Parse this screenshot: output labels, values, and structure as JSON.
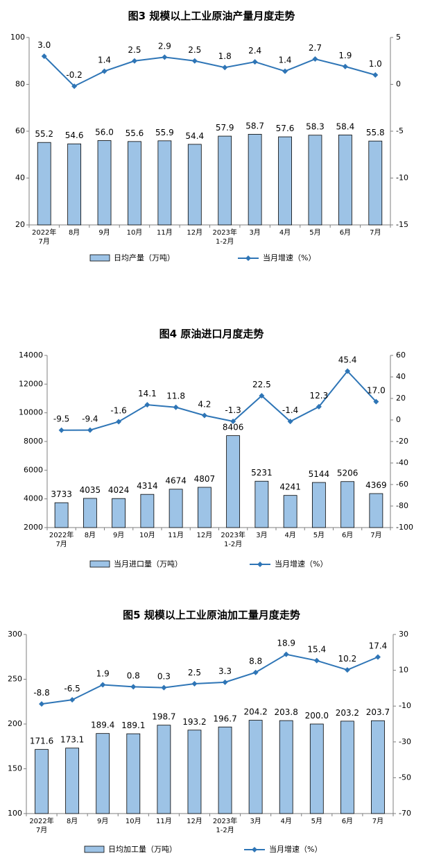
{
  "chart_data": [
    {
      "type": "bar+line",
      "title": "图3  规模以上工业原油产量月度走势",
      "categories": [
        [
          "2022年",
          "7月"
        ],
        [
          "8月"
        ],
        [
          "9月"
        ],
        [
          "10月"
        ],
        [
          "11月"
        ],
        [
          "12月"
        ],
        [
          "2023年",
          "1-2月"
        ],
        [
          "3月"
        ],
        [
          "4月"
        ],
        [
          "5月"
        ],
        [
          "6月"
        ],
        [
          "7月"
        ]
      ],
      "bars": {
        "name": "日均产量（万吨）",
        "values": [
          55.2,
          54.6,
          56.0,
          55.6,
          55.9,
          54.4,
          57.9,
          58.7,
          57.6,
          58.3,
          58.4,
          55.8
        ],
        "labels": [
          "55.2",
          "54.6",
          "56.0",
          "55.6",
          "55.9",
          "54.4",
          "57.9",
          "58.7",
          "57.6",
          "58.3",
          "58.4",
          "55.8"
        ]
      },
      "line": {
        "name": "当月增速（%）",
        "values": [
          3.0,
          -0.2,
          1.4,
          2.5,
          2.9,
          2.5,
          1.8,
          2.4,
          1.4,
          2.7,
          1.9,
          1.0
        ],
        "labels": [
          "3.0",
          "-0.2",
          "1.4",
          "2.5",
          "2.9",
          "2.5",
          "1.8",
          "2.4",
          "1.4",
          "2.7",
          "1.9",
          "1.0"
        ]
      },
      "ylim_left": [
        20,
        100
      ],
      "yticks_left": [
        20,
        40,
        60,
        80,
        100
      ],
      "ylim_right": [
        -15,
        5
      ],
      "yticks_right": [
        -15,
        -10,
        -5,
        0,
        5
      ],
      "grid": false,
      "legend": "bottom"
    },
    {
      "type": "bar+line",
      "title": "图4  原油进口月度走势",
      "categories": [
        [
          "2022年",
          "7月"
        ],
        [
          "8月"
        ],
        [
          "9月"
        ],
        [
          "10月"
        ],
        [
          "11月"
        ],
        [
          "12月"
        ],
        [
          "2023年",
          "1-2月"
        ],
        [
          "3月"
        ],
        [
          "4月"
        ],
        [
          "5月"
        ],
        [
          "6月"
        ],
        [
          "7月"
        ]
      ],
      "bars": {
        "name": "当月进口量（万吨）",
        "values": [
          3733,
          4035,
          4024,
          4314,
          4674,
          4807,
          8406,
          5231,
          4241,
          5144,
          5206,
          4369
        ],
        "labels": [
          "3733",
          "4035",
          "4024",
          "4314",
          "4674",
          "4807",
          "8406",
          "5231",
          "4241",
          "5144",
          "5206",
          "4369"
        ]
      },
      "line": {
        "name": "当月增速（%）",
        "values": [
          -9.5,
          -9.4,
          -1.6,
          14.1,
          11.8,
          4.2,
          -1.3,
          22.5,
          -1.4,
          12.3,
          45.4,
          17.0
        ],
        "labels": [
          "-9.5",
          "-9.4",
          "-1.6",
          "14.1",
          "11.8",
          "4.2",
          "-1.3",
          "22.5",
          "-1.4",
          "12.3",
          "45.4",
          "17.0"
        ]
      },
      "ylim_left": [
        2000,
        14000
      ],
      "yticks_left": [
        2000,
        4000,
        6000,
        8000,
        10000,
        12000,
        14000
      ],
      "ylim_right": [
        -100,
        60
      ],
      "yticks_right": [
        -100,
        -80,
        -60,
        -40,
        -20,
        0,
        20,
        40,
        60
      ],
      "grid": false,
      "legend": "bottom"
    },
    {
      "type": "bar+line",
      "title": "图5  规模以上工业原油加工量月度走势",
      "categories": [
        [
          "2022年",
          "7月"
        ],
        [
          "8月"
        ],
        [
          "9月"
        ],
        [
          "10月"
        ],
        [
          "11月"
        ],
        [
          "12月"
        ],
        [
          "2023年",
          "1-2月"
        ],
        [
          "3月"
        ],
        [
          "4月"
        ],
        [
          "5月"
        ],
        [
          "6月"
        ],
        [
          "7月"
        ]
      ],
      "bars": {
        "name": "日均加工量（万吨）",
        "values": [
          171.6,
          173.1,
          189.4,
          189.1,
          198.7,
          193.2,
          196.7,
          204.2,
          203.8,
          200.0,
          203.2,
          203.7
        ],
        "labels": [
          "171.6",
          "173.1",
          "189.4",
          "189.1",
          "198.7",
          "193.2",
          "196.7",
          "204.2",
          "203.8",
          "200.0",
          "203.2",
          "203.7"
        ]
      },
      "line": {
        "name": "当月增速（%）",
        "values": [
          -8.8,
          -6.5,
          1.9,
          0.8,
          0.3,
          2.5,
          3.3,
          8.8,
          18.9,
          15.4,
          10.2,
          17.4
        ],
        "labels": [
          "-8.8",
          "-6.5",
          "1.9",
          "0.8",
          "0.3",
          "2.5",
          "3.3",
          "8.8",
          "18.9",
          "15.4",
          "10.2",
          "17.4"
        ]
      },
      "ylim_left": [
        100,
        300
      ],
      "yticks_left": [
        100,
        150,
        200,
        250,
        300
      ],
      "ylim_right": [
        -70,
        30
      ],
      "yticks_right": [
        -70,
        -50,
        -30,
        -10,
        10,
        30
      ],
      "grid": false,
      "legend": "bottom"
    }
  ],
  "colors": {
    "bar_fill": "#9dc3e6",
    "bar_stroke": "#000000",
    "line": "#2e75b6",
    "axis": "#7f7f7f",
    "text": "#000000"
  }
}
